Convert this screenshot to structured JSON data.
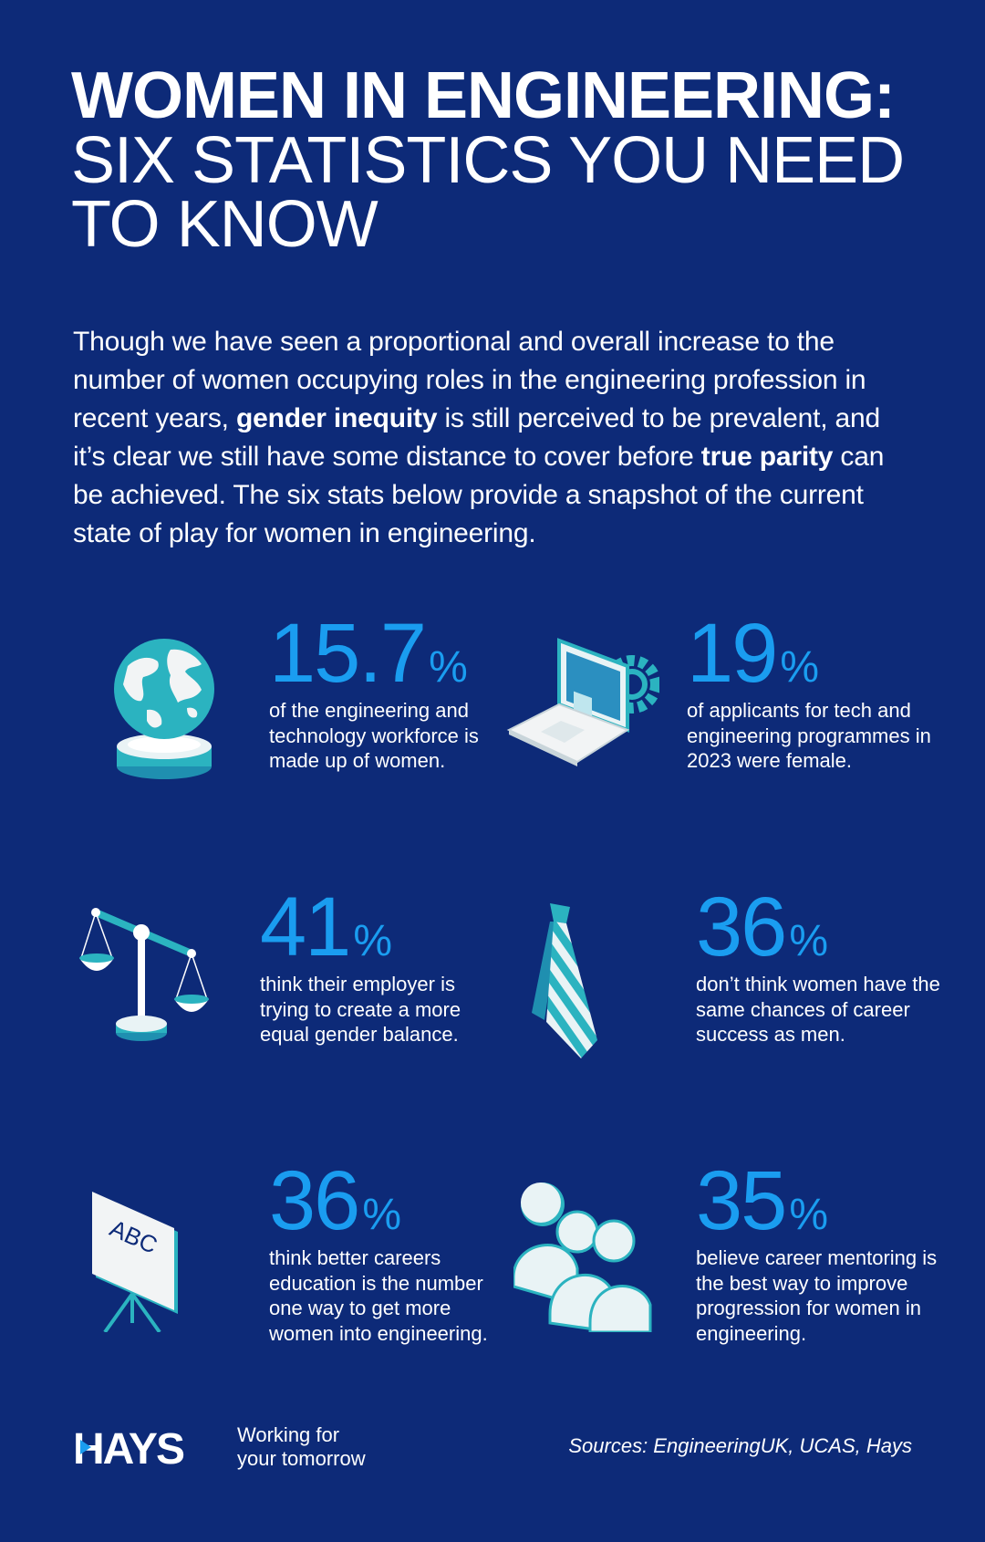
{
  "title": {
    "line1": "WOMEN IN ENGINEERING:",
    "line2": "SIX STATISTICS YOU NEED",
    "line3": "TO KNOW"
  },
  "intro": {
    "part1": "Though we have seen a proportional and overall increase to the number of women occupying roles in the engineering profession in recent years, ",
    "bold1": "gender inequity",
    "part2": " is still perceived to be prevalent, and it’s clear we still have some distance to cover before ",
    "bold2": "true parity",
    "part3": " can be achieved. The six stats below provide a snapshot of the current state of play for women in engineering."
  },
  "stats": [
    {
      "icon": "globe-icon",
      "value": "15.7",
      "unit": "%",
      "text": "of the engineering and technology workforce is made up of women."
    },
    {
      "icon": "laptop-gear-icon",
      "value": "19",
      "unit": "%",
      "text": "of applicants for tech and engineering programmes in 2023 were female."
    },
    {
      "icon": "scales-icon",
      "value": "41",
      "unit": "%",
      "text": "think their employer is trying to create a more equal gender balance."
    },
    {
      "icon": "tie-icon",
      "value": "36",
      "unit": "%",
      "text": "don’t think women have the same chances of career success as men."
    },
    {
      "icon": "easel-board-icon",
      "value": "36",
      "unit": "%",
      "text": "think better careers education is the number one way to get more women into engineering."
    },
    {
      "icon": "people-icon",
      "value": "35",
      "unit": "%",
      "text": "believe career mentoring is the best way to improve progression for women in engineering."
    }
  ],
  "footer": {
    "logo_text": "HAYS",
    "tagline_line1": "Working for",
    "tagline_line2": "your tomorrow",
    "sources": "Sources: EngineeringUK, UCAS, Hays"
  },
  "icon_labels": {
    "board_text": "ABC"
  },
  "colors": {
    "background": "#0d2a78",
    "accent_blue": "#1a9df0",
    "teal": "#2bb3c0",
    "white": "#ffffff"
  }
}
